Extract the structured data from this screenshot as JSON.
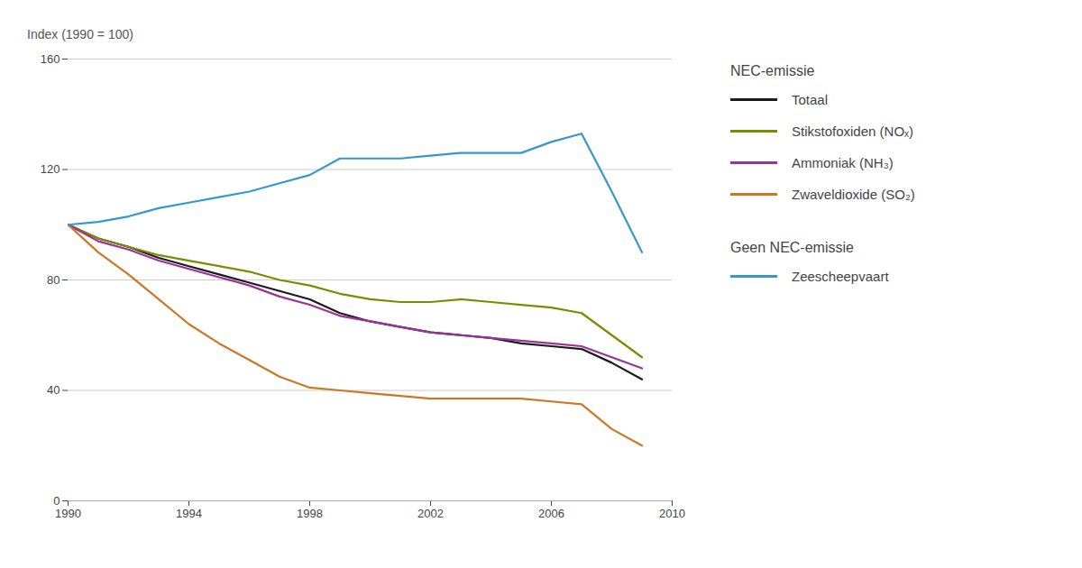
{
  "chart_data": {
    "type": "line",
    "ylabel": "Index (1990 = 100)",
    "x": [
      1990,
      1991,
      1992,
      1993,
      1994,
      1995,
      1996,
      1997,
      1998,
      1999,
      2000,
      2001,
      2002,
      2003,
      2004,
      2005,
      2006,
      2007,
      2008,
      2009
    ],
    "xlim": [
      1990,
      2010
    ],
    "xticks": [
      1990,
      1994,
      1998,
      2002,
      2006,
      2010
    ],
    "ylim": [
      0,
      160
    ],
    "yticks": [
      0,
      40,
      80,
      120,
      160
    ],
    "grid": true,
    "series": [
      {
        "name": "Totaal",
        "group": "NEC-emissie",
        "color": "#1a1a1a",
        "values": [
          100,
          95,
          92,
          88,
          85,
          82,
          79,
          76,
          73,
          68,
          65,
          63,
          61,
          60,
          59,
          57,
          56,
          55,
          50,
          44
        ]
      },
      {
        "name": "Stikstofoxiden (NOₓ)",
        "group": "NEC-emissie",
        "color": "#7a8c00",
        "values": [
          100,
          95,
          92,
          89,
          87,
          85,
          83,
          80,
          78,
          75,
          73,
          72,
          72,
          73,
          72,
          71,
          70,
          68,
          60,
          52
        ]
      },
      {
        "name": "Ammoniak (NH₃)",
        "group": "NEC-emissie",
        "color": "#993399",
        "values": [
          100,
          94,
          91,
          87,
          84,
          81,
          78,
          74,
          71,
          67,
          65,
          63,
          61,
          60,
          59,
          58,
          57,
          56,
          52,
          48
        ]
      },
      {
        "name": "Zwaveldioxide (SO₂)",
        "group": "NEC-emissie",
        "color": "#cc7722",
        "values": [
          100,
          90,
          82,
          73,
          64,
          57,
          51,
          45,
          41,
          40,
          39,
          38,
          37,
          37,
          37,
          37,
          36,
          35,
          26,
          20
        ]
      },
      {
        "name": "Zeescheepvaart",
        "group": "Geen NEC-emissie",
        "color": "#3399cc",
        "values": [
          100,
          101,
          103,
          106,
          108,
          110,
          112,
          115,
          118,
          124,
          124,
          124,
          125,
          126,
          126,
          126,
          130,
          133,
          112,
          90
        ]
      }
    ]
  }
}
